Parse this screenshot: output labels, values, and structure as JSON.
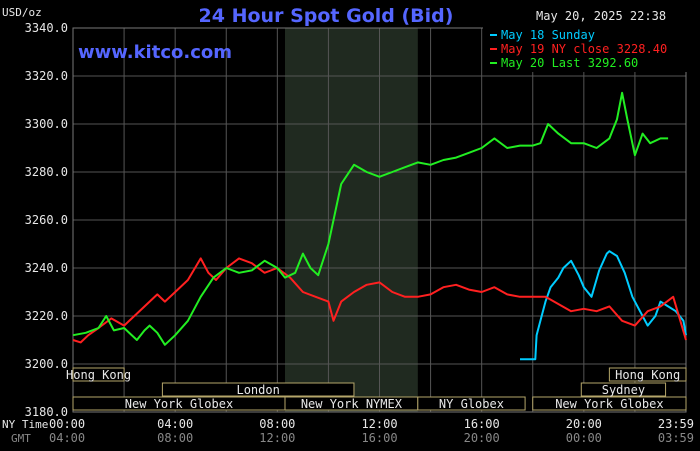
{
  "chart_data": {
    "type": "line",
    "title": "24 Hour Spot Gold (Bid)",
    "subtitle": "May 20, 2025 22:38",
    "brand": "www.kitco.com",
    "ylabel": "USD/oz",
    "ylim": [
      3180,
      3340
    ],
    "yticks": [
      "3180.0",
      "3200.0",
      "3220.0",
      "3240.0",
      "3260.0",
      "3280.0",
      "3300.0",
      "3320.0",
      "3340.0"
    ],
    "xlim": [
      0,
      24
    ],
    "xticks_ny": [
      "00:00",
      "04:00",
      "08:00",
      "12:00",
      "16:00",
      "20:00",
      "23:59"
    ],
    "xticks_gmt": [
      "04:00",
      "08:00",
      "12:00",
      "16:00",
      "20:00",
      "00:00",
      "03:59"
    ],
    "row_labels": [
      "NY Time",
      "GMT"
    ],
    "grid": true,
    "legend_position": "top-right",
    "legend": [
      {
        "label": "May 18 Sunday",
        "color": "#00ccff"
      },
      {
        "label": "May 19 NY close 3228.40",
        "color": "#ff2020"
      },
      {
        "label": "May 20 Last 3292.60",
        "color": "#22ee22"
      }
    ],
    "shaded_session": [
      8.3,
      13.5
    ],
    "sessions": {
      "row1": [
        {
          "label": "Hong Kong",
          "from": 0,
          "to": 2
        },
        {
          "label": "Hong Kong",
          "from": 21,
          "to": 24
        }
      ],
      "row2": [
        {
          "label": "London",
          "from": 3.5,
          "to": 11
        },
        {
          "label": "Sydney",
          "from": 19.9,
          "to": 23.2
        }
      ],
      "row3": [
        {
          "label": "New York Globex",
          "from": 0,
          "to": 8.3
        },
        {
          "label": "New York NYMEX",
          "from": 8.3,
          "to": 13.5
        },
        {
          "label": "NY Globex",
          "from": 13.5,
          "to": 17.7
        },
        {
          "label": "New York Globex",
          "from": 18,
          "to": 24
        }
      ]
    },
    "series": [
      {
        "name": "May 18 Sunday",
        "color": "#00ccff",
        "x": [
          17.5,
          18.1,
          18.15,
          18.3,
          18.5,
          18.7,
          19.0,
          19.2,
          19.5,
          19.8,
          20.0,
          20.3,
          20.6,
          20.9,
          21.0,
          21.3,
          21.6,
          21.9,
          22.2,
          22.5,
          22.8,
          23.0,
          23.3,
          23.6,
          23.9,
          24.0
        ],
        "values": [
          3202,
          3202,
          3212,
          3218,
          3226,
          3232,
          3236,
          3240,
          3243,
          3237,
          3232,
          3228,
          3239,
          3246,
          3247,
          3245,
          3238,
          3228,
          3222,
          3216,
          3220,
          3226,
          3224,
          3222,
          3218,
          3212
        ]
      },
      {
        "name": "May 19 NY close 3228.40",
        "color": "#ff2020",
        "x": [
          0,
          0.3,
          0.6,
          1.0,
          1.5,
          2.0,
          2.5,
          3.0,
          3.3,
          3.6,
          4.0,
          4.5,
          5.0,
          5.3,
          5.6,
          6.0,
          6.5,
          7.0,
          7.5,
          8.0,
          8.5,
          9.0,
          9.5,
          10.0,
          10.2,
          10.5,
          11.0,
          11.5,
          12.0,
          12.5,
          13.0,
          13.5,
          14.0,
          14.5,
          15.0,
          15.5,
          16.0,
          16.5,
          17.0,
          17.5,
          18.0,
          18.5,
          19.0,
          19.5,
          20.0,
          20.5,
          21.0,
          21.5,
          22.0,
          22.5,
          23.0,
          23.5,
          24.0
        ],
        "values": [
          3210,
          3209,
          3212,
          3215,
          3219,
          3216,
          3221,
          3226,
          3229,
          3226,
          3230,
          3235,
          3244,
          3238,
          3235,
          3240,
          3244,
          3242,
          3238,
          3240,
          3236,
          3230,
          3228,
          3226,
          3218,
          3226,
          3230,
          3233,
          3234,
          3230,
          3228,
          3228,
          3229,
          3232,
          3233,
          3231,
          3230,
          3232,
          3229,
          3228,
          3228,
          3228,
          3225,
          3222,
          3223,
          3222,
          3224,
          3218,
          3216,
          3222,
          3224,
          3228,
          3210
        ]
      },
      {
        "name": "May 20 Last 3292.60",
        "color": "#22ee22",
        "x": [
          0,
          0.5,
          1.0,
          1.3,
          1.6,
          2.0,
          2.5,
          2.8,
          3.0,
          3.3,
          3.6,
          4.0,
          4.5,
          5.0,
          5.5,
          6.0,
          6.5,
          7.0,
          7.5,
          8.0,
          8.3,
          8.7,
          9.0,
          9.3,
          9.6,
          10.0,
          10.5,
          11.0,
          11.5,
          12.0,
          12.5,
          13.0,
          13.5,
          14.0,
          14.5,
          15.0,
          15.5,
          16.0,
          16.5,
          17.0,
          17.5,
          18.0,
          18.3,
          18.6,
          19.0,
          19.5,
          20.0,
          20.5,
          21.0,
          21.3,
          21.5,
          21.7,
          22.0,
          22.3,
          22.6,
          23.0,
          23.3
        ],
        "values": [
          3212,
          3213,
          3215,
          3220,
          3214,
          3215,
          3210,
          3214,
          3216,
          3213,
          3208,
          3212,
          3218,
          3228,
          3236,
          3240,
          3238,
          3239,
          3243,
          3240,
          3236,
          3238,
          3246,
          3240,
          3237,
          3250,
          3275,
          3283,
          3280,
          3278,
          3280,
          3282,
          3284,
          3283,
          3285,
          3286,
          3288,
          3290,
          3294,
          3290,
          3291,
          3291,
          3292,
          3300,
          3296,
          3292,
          3292,
          3290,
          3294,
          3302,
          3313,
          3302,
          3287,
          3296,
          3292,
          3294,
          3294
        ]
      }
    ]
  }
}
